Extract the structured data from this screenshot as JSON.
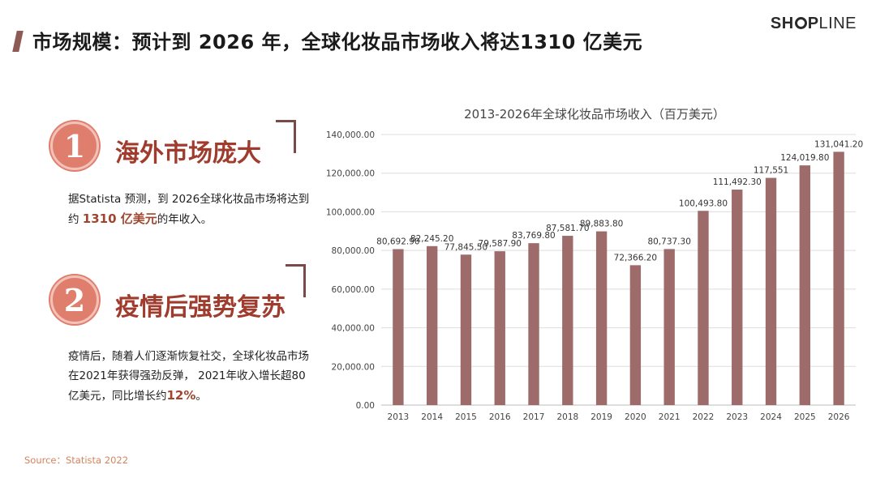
{
  "title": "市场规模：预计到 2026 年，全球化妆品市场收入将达1310 亿美元",
  "logo": {
    "bold": "SH",
    "rest_bold": "P",
    "light": "LINE"
  },
  "points": [
    {
      "number": "1",
      "heading": "海外市场庞大",
      "text_before": "据Statista 预测，到 2026全球化妆品市场将达到约",
      "highlight": "1310 亿美元",
      "text_after": "的年收入。"
    },
    {
      "number": "2",
      "heading": "疫情后强势复苏",
      "text_before": "疫情后，随着人们逐渐恢复社交，全球化妆品市场在2021年获得强劲反弹， 2021年收入增长超80亿美元，同比增长约",
      "highlight": "12%",
      "text_after": "。"
    }
  ],
  "source": "Source：Statista 2022",
  "colors": {
    "bar": "#9e6b6b",
    "accent": "#a03c2e",
    "circle": "#e07e6e"
  },
  "chart_data": {
    "type": "bar",
    "title": "2013-2026年全球化妆品市场收入（百万美元）",
    "categories": [
      "2013",
      "2014",
      "2015",
      "2016",
      "2017",
      "2018",
      "2019",
      "2020",
      "2021",
      "2022",
      "2023",
      "2024",
      "2025",
      "2026"
    ],
    "values": [
      80692.9,
      82245.2,
      77845.5,
      79587.9,
      83769.8,
      87581.7,
      89883.8,
      72366.2,
      80737.3,
      100493.8,
      111492.3,
      117551,
      124019.8,
      131041.2
    ],
    "value_labels": [
      "80,692.90",
      "82,245.20",
      "77,845.50",
      "79,587.90",
      "83,769.80",
      "87,581.70",
      "89,883.80",
      "72,366.20",
      "80,737.30",
      "100,493.80",
      "111,492.30",
      "117,551",
      "124,019.80",
      "131,041.20"
    ],
    "ylim": [
      0,
      140000
    ],
    "yticks": [
      "0.00",
      "20,000.00",
      "40,000.00",
      "60,000.00",
      "80,000.00",
      "100,000.00",
      "120,000.00",
      "140,000.00"
    ],
    "xlabel": "",
    "ylabel": "",
    "grid": true
  }
}
